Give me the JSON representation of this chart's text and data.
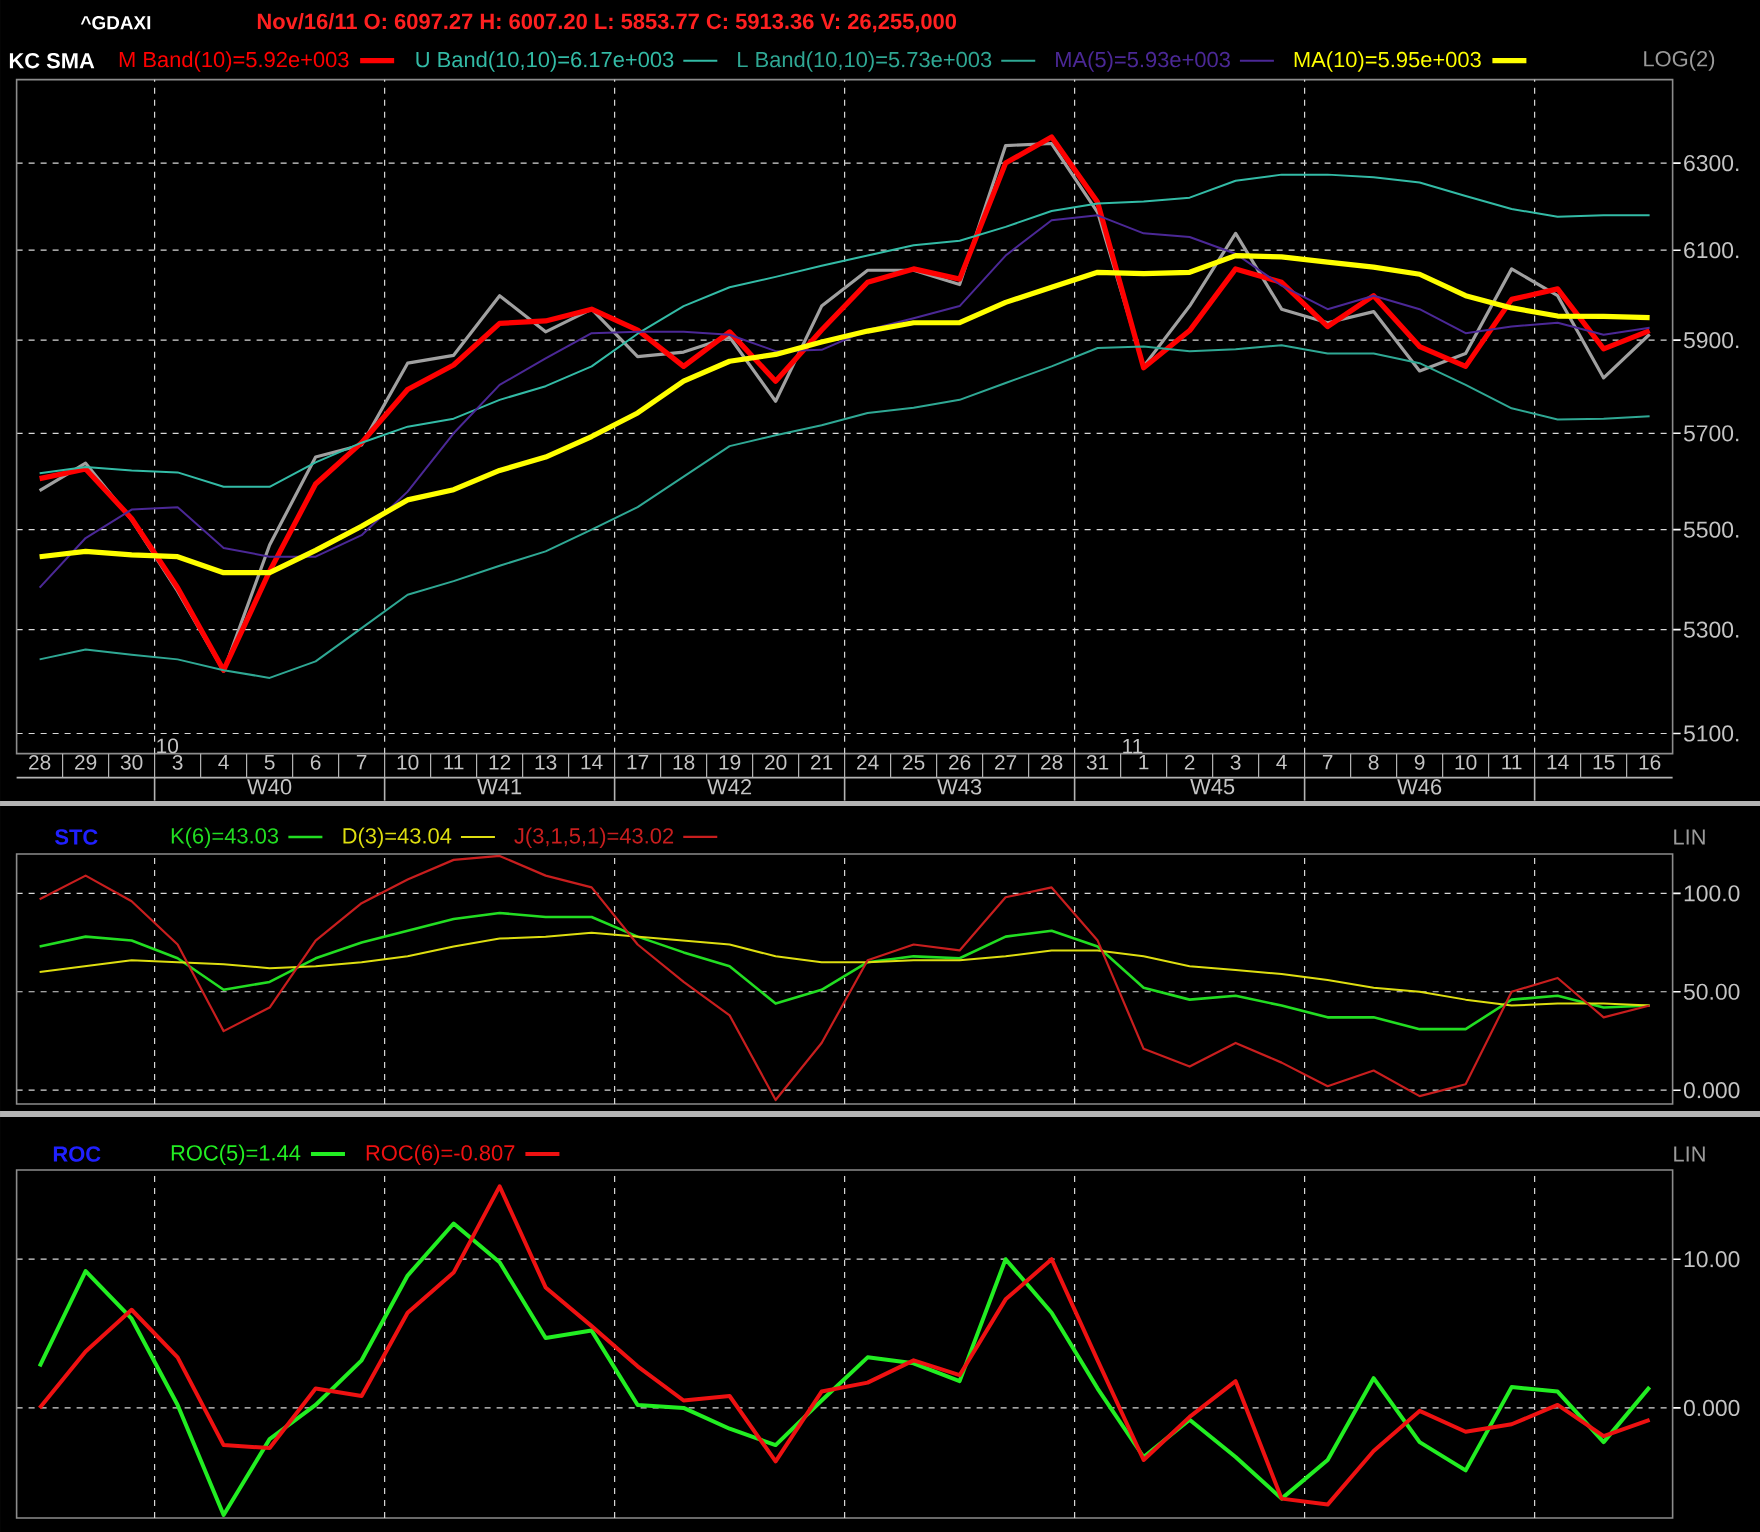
{
  "chart_data": [
    {
      "type": "line",
      "title": "^GDAXI",
      "subtitle": "Nov/16/11 O: 6097.27 H: 6007.20 L: 5853.77 C: 5913.36 V: 26,255,000",
      "legend_title": "KC SMA",
      "ylabel": "LOG(2)",
      "categories": [
        "28",
        "29",
        "30",
        "3",
        "4",
        "5",
        "6",
        "7",
        "10",
        "11",
        "12",
        "13",
        "14",
        "17",
        "18",
        "19",
        "20",
        "21",
        "24",
        "25",
        "26",
        "27",
        "28",
        "31",
        "1",
        "2",
        "3",
        "4",
        "7",
        "8",
        "9",
        "10",
        "11",
        "14",
        "15",
        "16"
      ],
      "series": [
        {
          "color": "#a0a0a0",
          "values": [
            5580,
            5637,
            5520,
            5376,
            5219,
            5469,
            5650,
            5675,
            5850,
            5867,
            5998,
            5918,
            5968,
            5864,
            5874,
            5907,
            5768,
            5975,
            6055,
            6055,
            6023,
            6341,
            6346,
            6186,
            5843,
            5975,
            6138,
            5968,
            5938,
            5963,
            5833,
            5871,
            6058,
            5998,
            5818,
            5913
          ]
        },
        {
          "name": "M Band(10)=5.92e+003",
          "color": "#ff0000",
          "values": [
            5605,
            5625,
            5523,
            5383,
            5221,
            5416,
            5594,
            5680,
            5793,
            5846,
            5937,
            5942,
            5968,
            5922,
            5843,
            5918,
            5811,
            5922,
            6028,
            6058,
            6035,
            6300,
            6361,
            6209,
            5840,
            5921,
            6058,
            6028,
            5930,
            5998,
            5886,
            5843,
            5990,
            6013,
            5881,
            5921
          ]
        },
        {
          "name": "U Band(10,10)=6.17e+003",
          "color": "#33bba6",
          "values": [
            5616,
            5629,
            5622,
            5618,
            5588,
            5588,
            5639,
            5680,
            5714,
            5731,
            5771,
            5800,
            5843,
            5914,
            5975,
            6017,
            6040,
            6065,
            6088,
            6111,
            6121,
            6153,
            6189,
            6206,
            6211,
            6220,
            6259,
            6273,
            6273,
            6267,
            6255,
            6224,
            6194,
            6176,
            6179,
            6179
          ]
        },
        {
          "name": "L Band(10,10)=5.73e+003",
          "color": "#2fa894",
          "values": [
            5242,
            5261,
            5251,
            5242,
            5221,
            5206,
            5238,
            5303,
            5369,
            5396,
            5427,
            5456,
            5500,
            5546,
            5609,
            5673,
            5696,
            5717,
            5743,
            5754,
            5771,
            5807,
            5843,
            5883,
            5886,
            5876,
            5880,
            5889,
            5871,
            5871,
            5850,
            5803,
            5753,
            5729,
            5731,
            5736
          ]
        },
        {
          "name": "MA(5)=5.93e+003",
          "color": "#4b2896",
          "values": [
            5383,
            5483,
            5541,
            5546,
            5463,
            5445,
            5445,
            5489,
            5578,
            5700,
            5803,
            5860,
            5915,
            5918,
            5918,
            5912,
            5876,
            5879,
            5922,
            5948,
            5975,
            6088,
            6168,
            6179,
            6138,
            6130,
            6092,
            6020,
            5968,
            5998,
            5968,
            5915,
            5930,
            5938,
            5912,
            5927
          ]
        },
        {
          "name": "MA(10)=5.95e+003",
          "color": "#ffff00",
          "values": [
            5445,
            5456,
            5449,
            5445,
            5413,
            5413,
            5458,
            5507,
            5561,
            5582,
            5622,
            5650,
            5693,
            5743,
            5811,
            5854,
            5869,
            5896,
            5920,
            5938,
            5938,
            5983,
            6017,
            6050,
            6047,
            6050,
            6088,
            6085,
            6073,
            6062,
            6046,
            5998,
            5971,
            5953,
            5952,
            5949
          ]
        }
      ],
      "ylim": [
        5062,
        6498
      ],
      "yticks": [
        {
          "value": 6300,
          "label": "6300."
        },
        {
          "value": 6100,
          "label": "6100."
        },
        {
          "value": 5900,
          "label": "5900."
        },
        {
          "value": 5700,
          "label": "5700."
        },
        {
          "value": 5500,
          "label": "5500."
        },
        {
          "value": 5300,
          "label": "5300."
        },
        {
          "value": 5100,
          "label": "5100."
        }
      ],
      "log": true,
      "grid": true,
      "legend": "top left",
      "annotations": [
        "10",
        "11",
        "W40",
        "W41",
        "W42",
        "W43",
        "W45",
        "W46"
      ]
    },
    {
      "type": "line",
      "legend_title": "STC",
      "ylabel": "LIN",
      "categories": [
        "28",
        "29",
        "30",
        "3",
        "4",
        "5",
        "6",
        "7",
        "10",
        "11",
        "12",
        "13",
        "14",
        "17",
        "18",
        "19",
        "20",
        "21",
        "24",
        "25",
        "26",
        "27",
        "28",
        "31",
        "1",
        "2",
        "3",
        "4",
        "7",
        "8",
        "9",
        "10",
        "11",
        "14",
        "15",
        "16"
      ],
      "series": [
        {
          "name": "K(6)=43.03",
          "color": "#22dd22",
          "values": [
            73,
            78,
            76,
            67,
            51,
            55,
            67,
            75,
            81,
            87,
            90,
            88,
            88,
            78,
            70,
            63,
            44,
            51,
            65,
            68,
            67,
            78,
            81,
            73,
            52,
            46,
            48,
            43,
            37,
            37,
            31,
            31,
            46,
            48,
            42,
            43
          ]
        },
        {
          "name": "D(3)=43.04",
          "color": "#dede10",
          "values": [
            60,
            63,
            66,
            65,
            64,
            62,
            63,
            65,
            68,
            73,
            77,
            78,
            80,
            78,
            76,
            74,
            68,
            65,
            65,
            66,
            66,
            68,
            71,
            71,
            68,
            63,
            61,
            59,
            56,
            52,
            50,
            46,
            43,
            44,
            44,
            43
          ]
        },
        {
          "name": "J(3,1,5,1)=43.02",
          "color": "#c81e1e",
          "values": [
            97,
            109,
            96,
            74,
            30,
            42,
            76,
            95,
            107,
            117,
            119,
            109,
            103,
            74,
            55,
            38,
            -5,
            24,
            66,
            74,
            71,
            98,
            103,
            76,
            21,
            12,
            24,
            14,
            2,
            10,
            -3,
            3,
            50,
            57,
            37,
            43
          ]
        }
      ],
      "ylim": [
        -7,
        120
      ],
      "yticks": [
        {
          "value": 100,
          "label": "100.0"
        },
        {
          "value": 50,
          "label": "50.00"
        },
        {
          "value": 0,
          "label": "0.000"
        }
      ],
      "grid": true,
      "legend": "top left",
      "tick_labels": "y"
    },
    {
      "type": "line",
      "legend_title": "ROC",
      "ylabel": "LIN",
      "categories": [
        "28",
        "29",
        "30",
        "3",
        "4",
        "5",
        "6",
        "7",
        "10",
        "11",
        "12",
        "13",
        "14",
        "17",
        "18",
        "19",
        "20",
        "21",
        "24",
        "25",
        "26",
        "27",
        "28",
        "31",
        "1",
        "2",
        "3",
        "4",
        "7",
        "8",
        "9",
        "10",
        "11",
        "14",
        "15",
        "16"
      ],
      "series": [
        {
          "name": "ROC(5)=1.44",
          "color": "#22ee22",
          "values": [
            2.8,
            9.2,
            6.0,
            0.2,
            -7.2,
            -2.1,
            0.2,
            3.2,
            8.9,
            12.4,
            9.8,
            4.7,
            5.2,
            0.2,
            0.0,
            -1.4,
            -2.5,
            0.5,
            3.4,
            3.0,
            1.8,
            10.0,
            6.4,
            1.3,
            -3.3,
            -0.8,
            -3.3,
            -6.1,
            -3.5,
            2.0,
            -2.3,
            -4.2,
            1.4,
            1.1,
            -2.3,
            1.4
          ]
        },
        {
          "name": "ROC(6)=-0.807",
          "color": "#ee1111",
          "values": [
            0.0,
            3.8,
            6.6,
            3.4,
            -2.5,
            -2.7,
            1.3,
            0.8,
            6.4,
            9.1,
            14.9,
            8.1,
            5.5,
            2.8,
            0.5,
            0.8,
            -3.6,
            1.1,
            1.7,
            3.2,
            2.2,
            7.3,
            10.0,
            3.2,
            -3.5,
            -0.6,
            1.8,
            -6.1,
            -6.5,
            -2.9,
            -0.2,
            -1.6,
            -1.1,
            0.2,
            -1.9,
            -0.8
          ]
        }
      ],
      "ylim": [
        -7.4,
        16
      ],
      "yticks": [
        {
          "value": 10,
          "label": "10.00"
        },
        {
          "value": 0,
          "label": "0.000"
        }
      ],
      "grid": true,
      "legend": "top left",
      "tick_labels": "y"
    }
  ]
}
